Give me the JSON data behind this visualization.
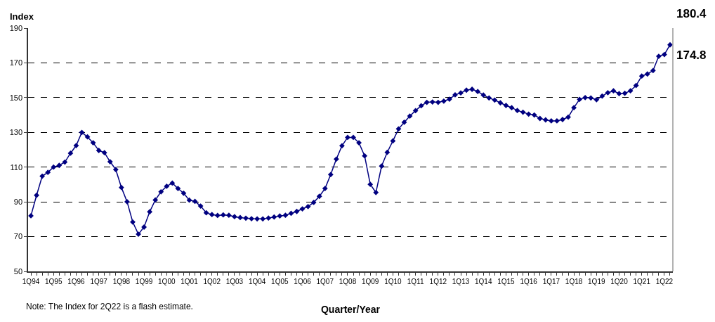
{
  "chart_data": {
    "type": "line",
    "xlabel": "Quarter/Year",
    "ylabel": "Index",
    "categories": [
      "1Q94",
      null,
      null,
      null,
      "1Q95",
      null,
      null,
      null,
      "1Q96",
      null,
      null,
      null,
      "1Q97",
      null,
      null,
      null,
      "1Q98",
      null,
      null,
      null,
      "1Q99",
      null,
      null,
      null,
      "1Q00",
      null,
      null,
      null,
      "1Q01",
      null,
      null,
      null,
      "1Q02",
      null,
      null,
      null,
      "1Q03",
      null,
      null,
      null,
      "1Q04",
      null,
      null,
      null,
      "1Q05",
      null,
      null,
      null,
      "1Q06",
      null,
      null,
      null,
      "1Q07",
      null,
      null,
      null,
      "1Q08",
      null,
      null,
      null,
      "1Q09",
      null,
      null,
      null,
      "1Q10",
      null,
      null,
      null,
      "1Q11",
      null,
      null,
      null,
      "1Q12",
      null,
      null,
      null,
      "1Q13",
      null,
      null,
      null,
      "1Q14",
      null,
      null,
      null,
      "1Q15",
      null,
      null,
      null,
      "1Q16",
      null,
      null,
      null,
      "1Q17",
      null,
      null,
      null,
      "1Q18",
      null,
      null,
      null,
      "1Q19",
      null,
      null,
      null,
      "1Q20",
      null,
      null,
      null,
      "1Q21",
      null,
      null,
      null,
      "1Q22",
      null
    ],
    "series": [
      {
        "color": "#000080",
        "values": [
          82,
          93.8,
          104.8,
          107,
          110,
          111,
          112.9,
          118,
          122.4,
          130,
          127.4,
          124,
          119.6,
          118.3,
          113.1,
          108.6,
          98.3,
          90.1,
          78.4,
          71.4,
          75.5,
          84.3,
          91.1,
          95.8,
          99,
          100.8,
          97.7,
          95,
          91,
          90.3,
          87.6,
          83.7,
          82.7,
          82.2,
          82.5,
          82.3,
          81.5,
          81,
          80.6,
          80.3,
          80.2,
          80.2,
          80.7,
          81.3,
          81.9,
          82.3,
          83.4,
          84.5,
          86,
          87.3,
          89.7,
          93.2,
          97.7,
          105.7,
          114.6,
          122.3,
          127.1,
          127.1,
          124,
          116.5,
          100.1,
          95.4,
          110.6,
          118.5,
          125.1,
          132,
          135.8,
          139.4,
          142.5,
          145.3,
          147.3,
          147.5,
          147.3,
          148,
          149.1,
          151.6,
          152.7,
          154.3,
          154.8,
          153.5,
          151.5,
          149.8,
          148.6,
          147,
          145.5,
          144.2,
          142.6,
          141.6,
          140.5,
          140,
          138,
          137.2,
          136.6,
          136.6,
          137.4,
          138.8,
          144.2,
          149,
          150,
          149.8,
          148.8,
          150.9,
          152.8,
          153.9,
          152.3,
          152.5,
          153.9,
          157,
          162.4,
          163.6,
          165.6,
          173.8,
          174.8,
          180.4
        ]
      }
    ],
    "ylim": [
      50,
      190
    ],
    "yticks": [
      50,
      70,
      90,
      110,
      130,
      150,
      170,
      190
    ],
    "grid": "y",
    "marker": "diamond",
    "line_style": "solid",
    "annotations": [
      "Note: The Index for 2Q22 is a flash estimate.",
      "180.4",
      "174.8"
    ]
  }
}
